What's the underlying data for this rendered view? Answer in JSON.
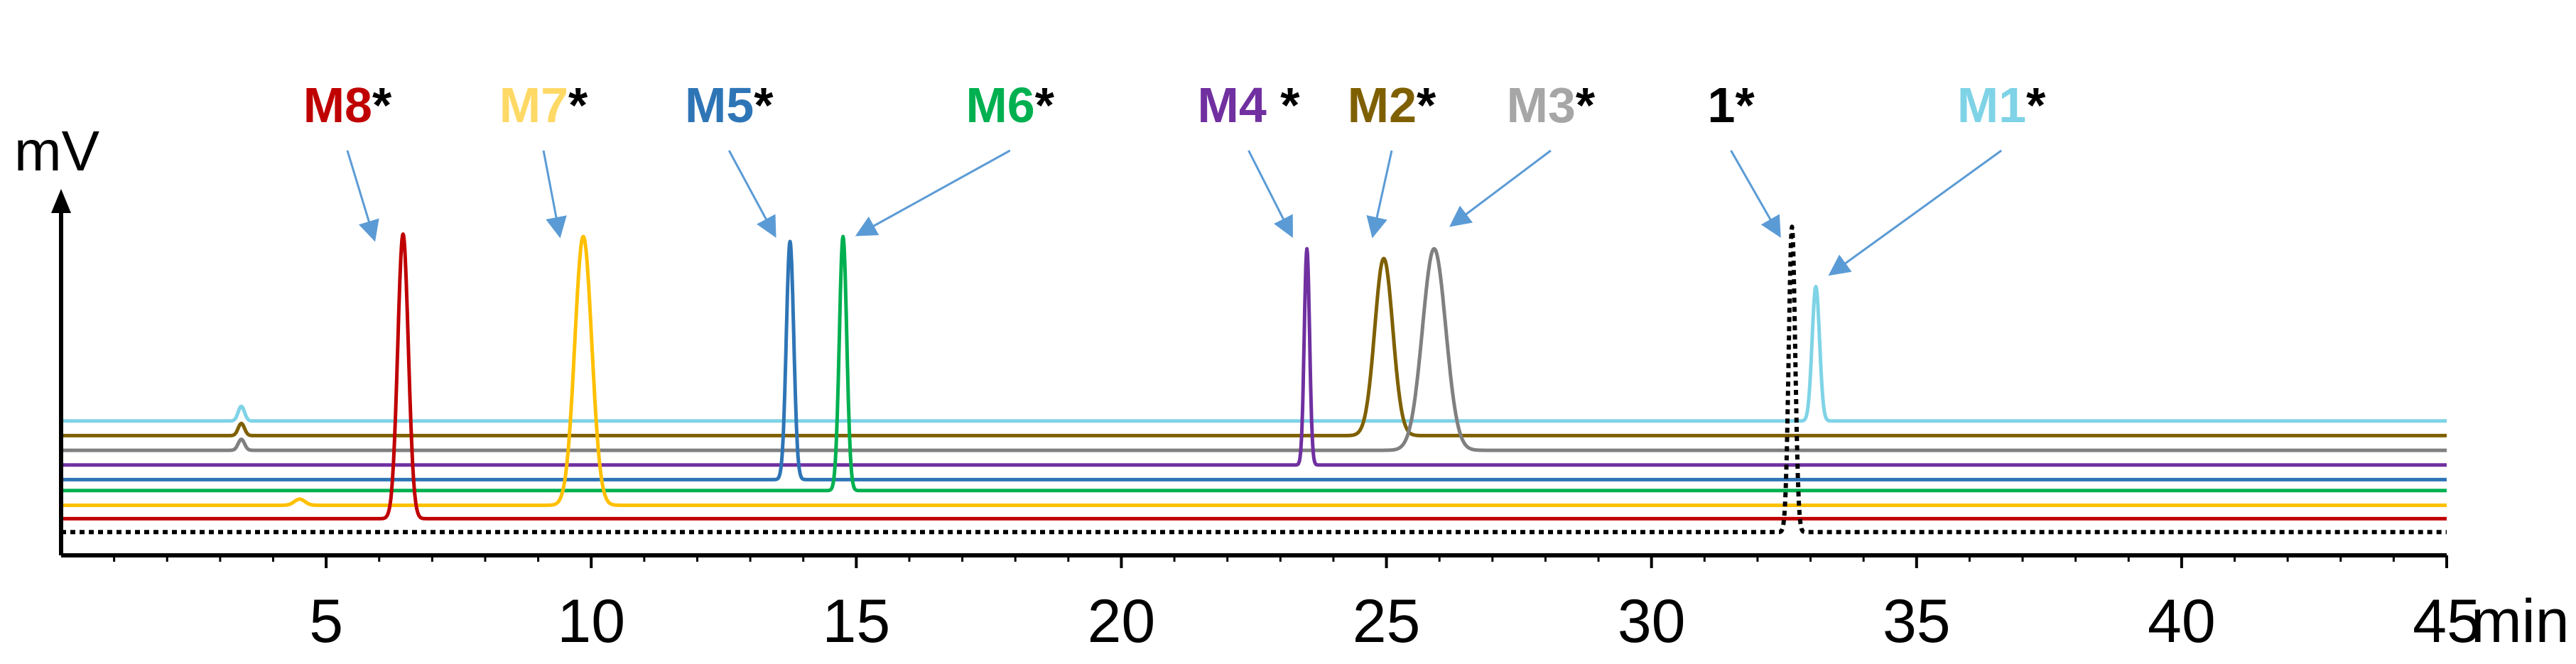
{
  "chart_data": {
    "type": "line",
    "title": "",
    "xlabel": "min",
    "ylabel": "mV",
    "xlim": [
      0,
      45
    ],
    "x_ticks": [
      5,
      10,
      15,
      20,
      25,
      30,
      35,
      40,
      45
    ],
    "x_tick_labels": [
      "5",
      "10",
      "15",
      "20",
      "25",
      "30",
      "35",
      "40",
      "45"
    ],
    "y_ticks": [],
    "grid": false,
    "legend": "none",
    "annotation_color": "#5b9bd5",
    "series": [
      {
        "name": "M1",
        "color": "#7fd3e6",
        "dash": false,
        "baseline": 11,
        "peaks": [
          {
            "rt": 33.1,
            "height": 11,
            "width": 0.07
          },
          {
            "rt": 3.4,
            "height": 1.2,
            "width": 0.06
          }
        ]
      },
      {
        "name": "M2",
        "color": "#7f6000",
        "dash": false,
        "baseline": 9.8,
        "peaks": [
          {
            "rt": 24.95,
            "height": 14.5,
            "width": 0.17
          },
          {
            "rt": 3.4,
            "height": 1.0,
            "width": 0.06
          }
        ]
      },
      {
        "name": "M3",
        "color": "#808080",
        "dash": false,
        "baseline": 8.6,
        "peaks": [
          {
            "rt": 25.9,
            "height": 16.5,
            "width": 0.22
          },
          {
            "rt": 3.4,
            "height": 0.9,
            "width": 0.06
          }
        ]
      },
      {
        "name": "M4",
        "color": "#7030a0",
        "dash": false,
        "baseline": 7.4,
        "peaks": [
          {
            "rt": 23.5,
            "height": 17.7,
            "width": 0.05
          }
        ]
      },
      {
        "name": "M5",
        "color": "#2e75b6",
        "dash": false,
        "baseline": 6.2,
        "peaks": [
          {
            "rt": 13.75,
            "height": 19.5,
            "width": 0.07
          }
        ]
      },
      {
        "name": "M6",
        "color": "#00b050",
        "dash": false,
        "baseline": 5.3,
        "peaks": [
          {
            "rt": 14.75,
            "height": 20.8,
            "width": 0.07
          }
        ]
      },
      {
        "name": "M7",
        "color": "#ffc000",
        "dash": false,
        "baseline": 4.1,
        "peaks": [
          {
            "rt": 9.85,
            "height": 22.0,
            "width": 0.16
          },
          {
            "rt": 4.5,
            "height": 0.5,
            "width": 0.1
          }
        ]
      },
      {
        "name": "M8",
        "color": "#c00000",
        "dash": false,
        "baseline": 3.0,
        "peaks": [
          {
            "rt": 6.45,
            "height": 23.3,
            "width": 0.1
          }
        ]
      },
      {
        "name": "1",
        "color": "#000000",
        "dash": true,
        "baseline": 1.9,
        "peaks": [
          {
            "rt": 32.65,
            "height": 25.0,
            "width": 0.06
          }
        ]
      }
    ],
    "annotations": [
      {
        "label": "M8",
        "suffix": "*",
        "label_color": "#c00000",
        "label_rt": 5.4,
        "tip": {
          "rt": 5.9,
          "y": 26.0
        }
      },
      {
        "label": "M7",
        "suffix": "*",
        "label_color": "#ffd966",
        "label_rt": 9.1,
        "tip": {
          "rt": 9.4,
          "y": 26.3
        }
      },
      {
        "label": "M5",
        "suffix": "*",
        "label_color": "#2e75b6",
        "label_rt": 12.6,
        "tip": {
          "rt": 13.45,
          "y": 26.3
        }
      },
      {
        "label": "M6",
        "suffix": "*",
        "label_color": "#00b050",
        "label_rt": 17.9,
        "tip": {
          "rt": 15.05,
          "y": 26.3
        }
      },
      {
        "label": "M4",
        "suffix": " *",
        "label_color": "#7030a0",
        "label_rt": 22.4,
        "tip": {
          "rt": 23.2,
          "y": 26.3
        }
      },
      {
        "label": "M2",
        "suffix": "*",
        "label_color": "#7f6000",
        "label_rt": 25.1,
        "tip": {
          "rt": 24.75,
          "y": 26.3
        }
      },
      {
        "label": "M3",
        "suffix": "*",
        "label_color": "#a6a6a6",
        "label_rt": 28.1,
        "tip": {
          "rt": 26.25,
          "y": 27.1
        }
      },
      {
        "label": "1",
        "suffix": "*",
        "label_color": "#000000",
        "label_rt": 31.5,
        "tip": {
          "rt": 32.4,
          "y": 26.3
        }
      },
      {
        "label": "M1",
        "suffix": "*",
        "label_color": "#7fd3e6",
        "label_rt": 36.6,
        "tip": {
          "rt": 33.4,
          "y": 23.1
        }
      }
    ]
  }
}
